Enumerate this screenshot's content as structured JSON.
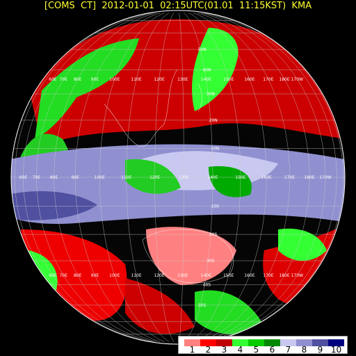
{
  "title": "[COMS  CT]  2012-01-01  02:15UTC(01.01  11:15KST)  KMA",
  "legend": {
    "classes": [
      "1",
      "2",
      "3",
      "4",
      "5",
      "6",
      "7",
      "8",
      "9",
      "10"
    ],
    "colors": [
      "#ff8080",
      "#ff0000",
      "#c00000",
      "#33ff33",
      "#00cc00",
      "#008800",
      "#c8c8f0",
      "#9090d0",
      "#5050a0",
      "#000080"
    ]
  },
  "lat_labels": [
    "50N",
    "40N",
    "30N",
    "20N",
    "10N",
    "10S",
    "20S",
    "30S",
    "40S",
    "50S"
  ],
  "lon_labels_equator": [
    "60E",
    "70E",
    "80E",
    "90E",
    "100E",
    "110E",
    "120E",
    "130E",
    "140E",
    "150E",
    "160E",
    "170E",
    "180E",
    "170W"
  ],
  "lon_labels_north": [
    "60E",
    "70E",
    "80E",
    "90E",
    "100E",
    "110E",
    "120E",
    "130E",
    "140E",
    "150E",
    "160E",
    "170E",
    "180E",
    "170W"
  ],
  "lon_labels_south": [
    "60E",
    "70E",
    "80E",
    "90E",
    "100E",
    "110E",
    "120E",
    "130E",
    "140E",
    "150E",
    "160E",
    "170E",
    "180E",
    "170W"
  ]
}
